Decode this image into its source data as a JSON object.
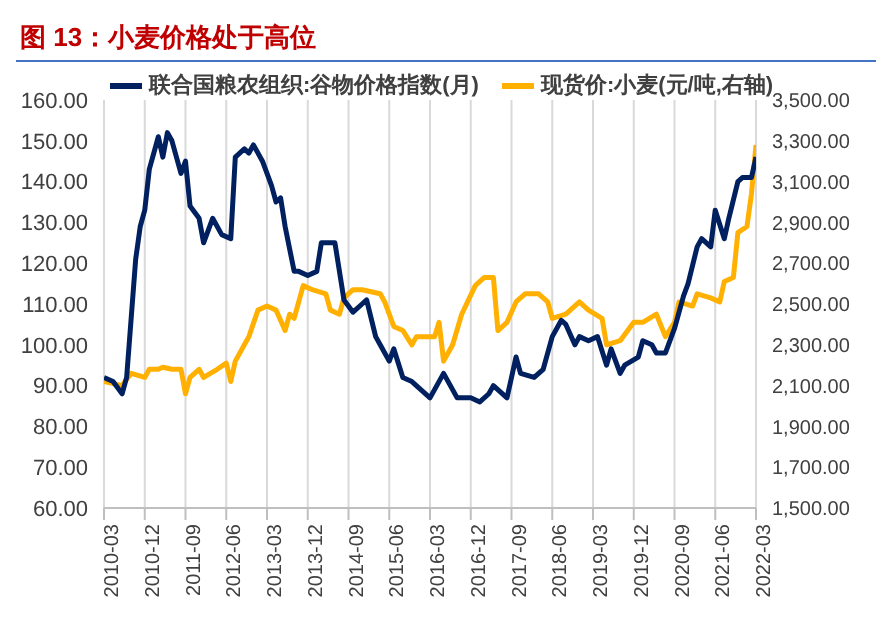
{
  "chart_data": {
    "type": "line",
    "title": "图 13：小麦价格处于高位",
    "xlim": [
      "2010-03",
      "2022-03"
    ],
    "xticks": [
      "2010-03",
      "2010-12",
      "2011-09",
      "2012-06",
      "2013-03",
      "2013-12",
      "2014-09",
      "2015-06",
      "2016-03",
      "2016-12",
      "2017-09",
      "2018-06",
      "2019-03",
      "2019-12",
      "2020-09",
      "2021-06",
      "2022-03"
    ],
    "ylim": [
      60,
      160
    ],
    "yticks": [
      {
        "value": 60,
        "label": "60.00"
      },
      {
        "value": 70,
        "label": "70.00"
      },
      {
        "value": 80,
        "label": "80.00"
      },
      {
        "value": 90,
        "label": "90.00"
      },
      {
        "value": 100,
        "label": "100.00"
      },
      {
        "value": 110,
        "label": "110.00"
      },
      {
        "value": 120,
        "label": "120.00"
      },
      {
        "value": 130,
        "label": "130.00"
      },
      {
        "value": 140,
        "label": "140.00"
      },
      {
        "value": 150,
        "label": "150.00"
      },
      {
        "value": 160,
        "label": "160.00"
      }
    ],
    "y2lim": [
      1500,
      3500
    ],
    "y2ticks": [
      {
        "value": 1500,
        "label": "1,500.00"
      },
      {
        "value": 1700,
        "label": "1,700.00"
      },
      {
        "value": 1900,
        "label": "1,900.00"
      },
      {
        "value": 2100,
        "label": "2,100.00"
      },
      {
        "value": 2300,
        "label": "2,300.00"
      },
      {
        "value": 2500,
        "label": "2,500.00"
      },
      {
        "value": 2700,
        "label": "2,700.00"
      },
      {
        "value": 2900,
        "label": "2,900.00"
      },
      {
        "value": 3100,
        "label": "3,100.00"
      },
      {
        "value": 3300,
        "label": "3,300.00"
      },
      {
        "value": 3500,
        "label": "3,500.00"
      }
    ],
    "grid": "x",
    "legend": "top",
    "marker": "none",
    "line_style": "solid",
    "series": [
      {
        "name": "联合国粮农组织:谷物价格指数(月)",
        "color": "#002060",
        "x": [
          "2010-03",
          "2010-05",
          "2010-07",
          "2010-08",
          "2010-10",
          "2010-11",
          "2010-12",
          "2011-01",
          "2011-03",
          "2011-04",
          "2011-05",
          "2011-06",
          "2011-08",
          "2011-09",
          "2011-10",
          "2011-12",
          "2012-01",
          "2012-03",
          "2012-05",
          "2012-07",
          "2012-08",
          "2012-10",
          "2012-11",
          "2012-12",
          "2013-02",
          "2013-04",
          "2013-05",
          "2013-06",
          "2013-07",
          "2013-09",
          "2013-10",
          "2013-12",
          "2014-02",
          "2014-03",
          "2014-06",
          "2014-07",
          "2014-08",
          "2014-10",
          "2014-12",
          "2015-01",
          "2015-03",
          "2015-04",
          "2015-06",
          "2015-07",
          "2015-09",
          "2015-11",
          "2016-03",
          "2016-06",
          "2016-09",
          "2016-12",
          "2017-02",
          "2017-04",
          "2017-05",
          "2017-08",
          "2017-10",
          "2017-11",
          "2018-02",
          "2018-04",
          "2018-06",
          "2018-08",
          "2018-09",
          "2018-11",
          "2018-12",
          "2019-02",
          "2019-04",
          "2019-06",
          "2019-07",
          "2019-09",
          "2019-10",
          "2020-01",
          "2020-02",
          "2020-04",
          "2020-05",
          "2020-07",
          "2020-09",
          "2020-11",
          "2020-12",
          "2021-02",
          "2021-03",
          "2021-05",
          "2021-06",
          "2021-08",
          "2021-09",
          "2021-11",
          "2021-12",
          "2022-02",
          "2022-03"
        ],
        "values": [
          92,
          91,
          88,
          92,
          121,
          129,
          133,
          143,
          151,
          146,
          152,
          150,
          142,
          145,
          134,
          131,
          125,
          131,
          127,
          126,
          146,
          148,
          147,
          149,
          145,
          139,
          135,
          136,
          129,
          118,
          118,
          117,
          118,
          125,
          125,
          118,
          111,
          108,
          110,
          111,
          102,
          100,
          96,
          99,
          92,
          91,
          87,
          93,
          87,
          87,
          86,
          88,
          90,
          87,
          97,
          93,
          92,
          94,
          102,
          106,
          105,
          100,
          102,
          101,
          102,
          95,
          99,
          93,
          95,
          97,
          101,
          100,
          98,
          98,
          104,
          112,
          115,
          124,
          126,
          124,
          133,
          126,
          131,
          140,
          141,
          141,
          146
        ]
      },
      {
        "name": "现货价:小麦(元/吨,右轴)",
        "color": "#ffb000",
        "axis": "y2",
        "x": [
          "2010-03",
          "2010-07",
          "2010-09",
          "2010-12",
          "2011-01",
          "2011-03",
          "2011-04",
          "2011-06",
          "2011-08",
          "2011-09",
          "2011-10",
          "2011-12",
          "2012-01",
          "2012-04",
          "2012-06",
          "2012-07",
          "2012-08",
          "2012-10",
          "2012-11",
          "2013-01",
          "2013-03",
          "2013-05",
          "2013-07",
          "2013-08",
          "2013-09",
          "2013-11",
          "2014-01",
          "2014-04",
          "2014-05",
          "2014-07",
          "2014-08",
          "2014-10",
          "2014-12",
          "2015-04",
          "2015-05",
          "2015-07",
          "2015-09",
          "2015-11",
          "2015-12",
          "2016-02",
          "2016-04",
          "2016-05",
          "2016-06",
          "2016-08",
          "2016-10",
          "2017-01",
          "2017-03",
          "2017-05",
          "2017-06",
          "2017-08",
          "2017-10",
          "2017-12",
          "2018-03",
          "2018-05",
          "2018-06",
          "2018-09",
          "2018-12",
          "2019-02",
          "2019-05",
          "2019-06",
          "2019-09",
          "2019-12",
          "2020-02",
          "2020-05",
          "2020-07",
          "2020-09",
          "2020-10",
          "2021-01",
          "2021-02",
          "2021-05",
          "2021-07",
          "2021-08",
          "2021-10",
          "2021-11",
          "2022-01",
          "2022-02",
          "2022-03"
        ],
        "values": [
          2120,
          2100,
          2160,
          2140,
          2180,
          2180,
          2190,
          2180,
          2180,
          2060,
          2140,
          2180,
          2140,
          2180,
          2210,
          2120,
          2220,
          2300,
          2340,
          2470,
          2490,
          2470,
          2370,
          2450,
          2430,
          2590,
          2570,
          2550,
          2470,
          2450,
          2530,
          2570,
          2570,
          2550,
          2510,
          2390,
          2370,
          2300,
          2340,
          2340,
          2340,
          2410,
          2220,
          2300,
          2450,
          2590,
          2630,
          2630,
          2370,
          2410,
          2510,
          2550,
          2550,
          2510,
          2430,
          2450,
          2510,
          2470,
          2430,
          2300,
          2320,
          2410,
          2410,
          2450,
          2340,
          2410,
          2510,
          2490,
          2550,
          2530,
          2510,
          2610,
          2630,
          2850,
          2880,
          3040,
          3280
        ]
      }
    ]
  }
}
